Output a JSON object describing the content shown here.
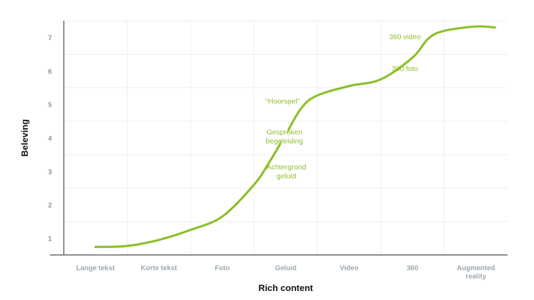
{
  "chart_data": {
    "type": "line",
    "title": "",
    "xlabel": "Rich content",
    "ylabel": "Beleving",
    "categories": [
      "Lange tekst",
      "Korte tekst",
      "Foto",
      "Geluid",
      "Video",
      "360",
      "Augmented reality"
    ],
    "category_lines": [
      [
        "Lange tekst"
      ],
      [
        "Korte tekst"
      ],
      [
        "Foto"
      ],
      [
        "Geluid"
      ],
      [
        "Video"
      ],
      [
        "360"
      ],
      [
        "Augmented",
        "reality"
      ]
    ],
    "yticks": [
      "1",
      "2",
      "3",
      "4",
      "5",
      "6",
      "7"
    ],
    "ylim": [
      0.5,
      7.5
    ],
    "grid": true,
    "line_color": "#8cbf2a",
    "series": [
      {
        "values": [
          [
            0,
            0.74
          ],
          [
            0.5,
            0.77
          ],
          [
            1,
            0.95
          ],
          [
            1.5,
            1.25
          ],
          [
            2,
            1.65
          ],
          [
            2.5,
            2.6
          ],
          [
            2.75,
            3.3
          ],
          [
            3,
            4.1
          ],
          [
            3.25,
            4.9
          ],
          [
            3.5,
            5.27
          ],
          [
            4,
            5.55
          ],
          [
            4.5,
            5.75
          ],
          [
            5,
            6.4
          ],
          [
            5.25,
            6.97
          ],
          [
            5.5,
            7.2
          ],
          [
            6,
            7.33
          ],
          [
            6.3,
            7.3
          ]
        ]
      }
    ],
    "annotations": [
      {
        "lines": [
          "360 video"
        ],
        "x": 4.88,
        "y": 6.95,
        "gap": [
          4.78,
          4.98
        ]
      },
      {
        "lines": [
          "360 foto"
        ],
        "x": 4.88,
        "y": 6.0,
        "gap": null
      },
      {
        "lines": [
          "“Hoorspel”"
        ],
        "x": 2.95,
        "y": 5.02,
        "gap": null
      },
      {
        "lines": [
          "Gesproken",
          "begeleiding"
        ],
        "x": 2.98,
        "y": 4.1,
        "gap": [
          2.93,
          3.03
        ]
      },
      {
        "lines": [
          "Achtergrond",
          "geluid"
        ],
        "x": 3.01,
        "y": 3.06,
        "gap": [
          2.96,
          3.06
        ]
      }
    ]
  }
}
